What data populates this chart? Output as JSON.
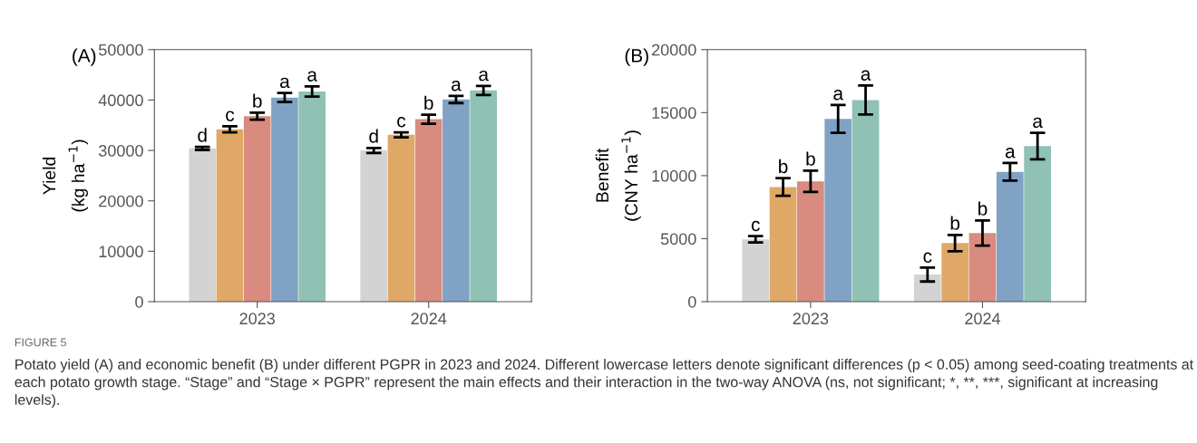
{
  "chart_data": [
    {
      "type": "bar",
      "title": "(A)",
      "ylabel": "Yield\n(kg ha$^{−1}$)",
      "categories": [
        "2023",
        "2024"
      ],
      "ylim": [
        0,
        50000
      ],
      "yticks": [
        0,
        10000,
        20000,
        30000,
        40000,
        50000
      ],
      "grid": false,
      "legend": false,
      "series": [
        {
          "color": "#d3d3d3",
          "values": [
            30400,
            30000
          ],
          "errors": [
            300,
            500
          ],
          "value_labels": [
            "d",
            "d"
          ]
        },
        {
          "color": "#e0a866",
          "values": [
            34200,
            33100
          ],
          "errors": [
            600,
            500
          ],
          "value_labels": [
            "c",
            "c"
          ]
        },
        {
          "color": "#d98b80",
          "values": [
            36800,
            36200
          ],
          "errors": [
            700,
            900
          ],
          "value_labels": [
            "b",
            "b"
          ]
        },
        {
          "color": "#80a2c4",
          "values": [
            40500,
            40100
          ],
          "errors": [
            900,
            700
          ],
          "value_labels": [
            "a",
            "a"
          ]
        },
        {
          "color": "#8fc1b5",
          "values": [
            41700,
            41900
          ],
          "errors": [
            1000,
            900
          ],
          "value_labels": [
            "a",
            "a"
          ]
        }
      ],
      "annotations": [
        "FIGURE 5",
        "Potato yield (A) and economic benefit (B) under different PGPR in 2023 and 2024. Different lowercase letters denote significant differences (p < 0.05) among seed-coating treatments at each potato growth stage. “Stage” and “Stage × PGPR” represent the main effects and their interaction in the two-way ANOVA (ns, not significant; *, **, ***, significant at increasing levels)."
      ]
    },
    {
      "type": "bar",
      "title": "(B)",
      "ylabel": "Benefit\n(CNY ha$^{−1}$)",
      "categories": [
        "2023",
        "2024"
      ],
      "ylim": [
        0,
        20000
      ],
      "yticks": [
        0,
        5000,
        10000,
        15000,
        20000
      ],
      "grid": false,
      "legend": false,
      "series": [
        {
          "color": "#d3d3d3",
          "values": [
            4950,
            2150
          ],
          "errors": [
            250,
            550
          ],
          "value_labels": [
            "c",
            "c"
          ]
        },
        {
          "color": "#e0a866",
          "values": [
            9100,
            4650
          ],
          "errors": [
            700,
            650
          ],
          "value_labels": [
            "b",
            "b"
          ]
        },
        {
          "color": "#d98b80",
          "values": [
            9550,
            5450
          ],
          "errors": [
            850,
            1000
          ],
          "value_labels": [
            "b",
            "b"
          ]
        },
        {
          "color": "#80a2c4",
          "values": [
            14500,
            10300
          ],
          "errors": [
            1100,
            700
          ],
          "value_labels": [
            "a",
            "a"
          ]
        },
        {
          "color": "#8fc1b5",
          "values": [
            16000,
            12350
          ],
          "errors": [
            1150,
            1050
          ],
          "value_labels": [
            "a",
            "a"
          ]
        }
      ]
    }
  ]
}
